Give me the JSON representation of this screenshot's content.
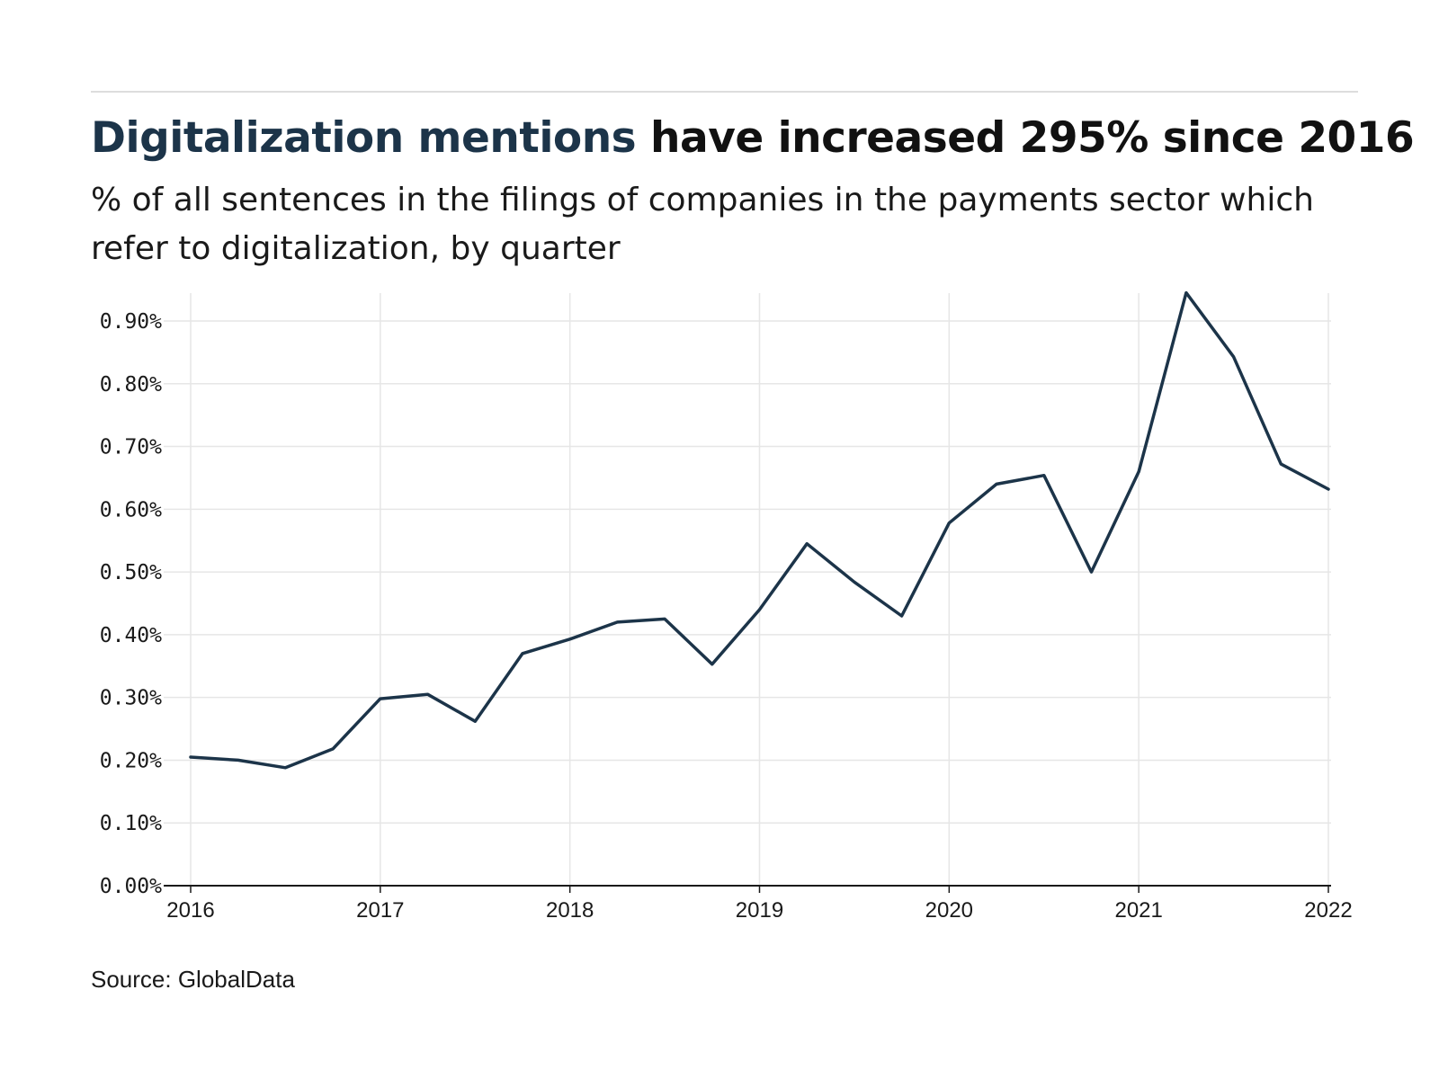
{
  "chart_data": {
    "type": "line",
    "title_accent": "Digitalization mentions",
    "title_rest": " have increased 295% since 2016",
    "subtitle": "% of all sentences in the filings of companies in the payments sector which refer to digitalization, by quarter",
    "source": "Source: GlobalData",
    "x_ticks": [
      "2016",
      "2017",
      "2018",
      "2019",
      "2020",
      "2021",
      "2022"
    ],
    "xlim": [
      2016,
      2022
    ],
    "y_ticks": [
      "0.00%",
      "0.10%",
      "0.20%",
      "0.30%",
      "0.40%",
      "0.50%",
      "0.60%",
      "0.70%",
      "0.80%",
      "0.90%"
    ],
    "ylim": [
      0,
      0.9
    ],
    "grid": true,
    "colors": {
      "line": "#1c3449",
      "grid": "#e6e6e6",
      "axis": "#1a1a1a",
      "accent": "#1c3449"
    },
    "series": [
      {
        "x": [
          "2016 Q1",
          "2016 Q2",
          "2016 Q3",
          "2016 Q4",
          "2017 Q1",
          "2017 Q2",
          "2017 Q3",
          "2017 Q4",
          "2018 Q1",
          "2018 Q2",
          "2018 Q3",
          "2018 Q4",
          "2019 Q1",
          "2019 Q2",
          "2019 Q3",
          "2019 Q4",
          "2020 Q1",
          "2020 Q2",
          "2020 Q3",
          "2020 Q4",
          "2021 Q1",
          "2021 Q2",
          "2021 Q3",
          "2021 Q4",
          "2022 Q1"
        ],
        "values": [
          0.205,
          0.2,
          0.188,
          0.218,
          0.298,
          0.305,
          0.262,
          0.37,
          0.393,
          0.42,
          0.425,
          0.353,
          0.44,
          0.545,
          0.484,
          0.43,
          0.578,
          0.64,
          0.654,
          0.5,
          0.66,
          0.945,
          0.843,
          0.672,
          0.632
        ]
      }
    ]
  }
}
